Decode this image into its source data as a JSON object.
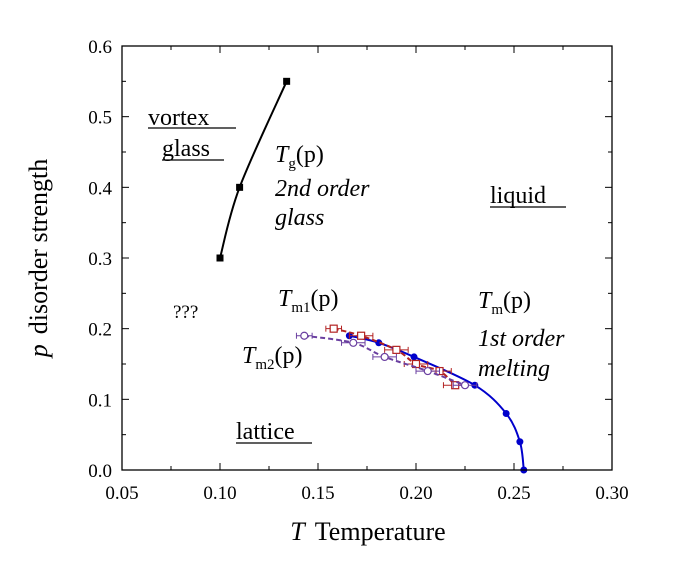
{
  "chart_data": {
    "type": "scatter",
    "title": "",
    "xlabel": {
      "var": "T",
      "text": "Temperature"
    },
    "ylabel": {
      "var": "p",
      "text": "disorder strength"
    },
    "xlim": [
      0.05,
      0.3
    ],
    "ylim": [
      0.0,
      0.6
    ],
    "x_ticks": [
      "0.05",
      "0.10",
      "0.15",
      "0.20",
      "0.25",
      "0.30"
    ],
    "y_ticks": [
      "0.0",
      "0.1",
      "0.2",
      "0.3",
      "0.4",
      "0.5",
      "0.6"
    ],
    "grid": false,
    "series": [
      {
        "name": "Tg(p) glass line",
        "color": "#000000",
        "marker": "filled-square",
        "line": "solid",
        "points": [
          {
            "x": 0.1,
            "y": 0.3
          },
          {
            "x": 0.11,
            "y": 0.4
          },
          {
            "x": 0.134,
            "y": 0.55
          }
        ]
      },
      {
        "name": "Tm(p) melting line",
        "color": "#0000cc",
        "marker": "filled-circle",
        "line": "solid",
        "points": [
          {
            "x": 0.166,
            "y": 0.19
          },
          {
            "x": 0.181,
            "y": 0.18
          },
          {
            "x": 0.199,
            "y": 0.16
          },
          {
            "x": 0.23,
            "y": 0.12
          },
          {
            "x": 0.246,
            "y": 0.08
          },
          {
            "x": 0.253,
            "y": 0.04
          },
          {
            "x": 0.255,
            "y": 0.0
          }
        ]
      },
      {
        "name": "Tm1(p)",
        "color": "#b22222",
        "marker": "open-square",
        "line": "dashed",
        "points": [
          {
            "x": 0.158,
            "y": 0.2,
            "xerr": 0.004
          },
          {
            "x": 0.172,
            "y": 0.19,
            "xerr": 0.006
          },
          {
            "x": 0.19,
            "y": 0.17,
            "xerr": 0.006
          },
          {
            "x": 0.2,
            "y": 0.15,
            "xerr": 0.006
          },
          {
            "x": 0.212,
            "y": 0.14,
            "xerr": 0.006
          },
          {
            "x": 0.22,
            "y": 0.12,
            "xerr": 0.006
          }
        ]
      },
      {
        "name": "Tm2(p)",
        "color": "#6a3fa0",
        "marker": "open-circle",
        "line": "dashed",
        "points": [
          {
            "x": 0.143,
            "y": 0.19,
            "xerr": 0.004
          },
          {
            "x": 0.168,
            "y": 0.18,
            "xerr": 0.006
          },
          {
            "x": 0.184,
            "y": 0.16,
            "xerr": 0.006
          },
          {
            "x": 0.206,
            "y": 0.14,
            "xerr": 0.006
          },
          {
            "x": 0.225,
            "y": 0.12,
            "xerr": 0.006
          }
        ]
      }
    ],
    "annotations": {
      "vortex_glass": {
        "line1": "vortex",
        "line2": "glass"
      },
      "tg": {
        "var": "T",
        "sub": "g",
        "arg": "(p)",
        "line2": "2nd order",
        "line3": "glass"
      },
      "liquid": "liquid",
      "unknown": "???",
      "tm1": {
        "var": "T",
        "sub": "m1",
        "arg": "(p)"
      },
      "tm2": {
        "var": "T",
        "sub": "m2",
        "arg": "(p)"
      },
      "tm": {
        "var": "T",
        "sub": "m",
        "arg": "(p)",
        "line2": "1st order",
        "line3": "melting"
      },
      "lattice": "lattice"
    }
  }
}
